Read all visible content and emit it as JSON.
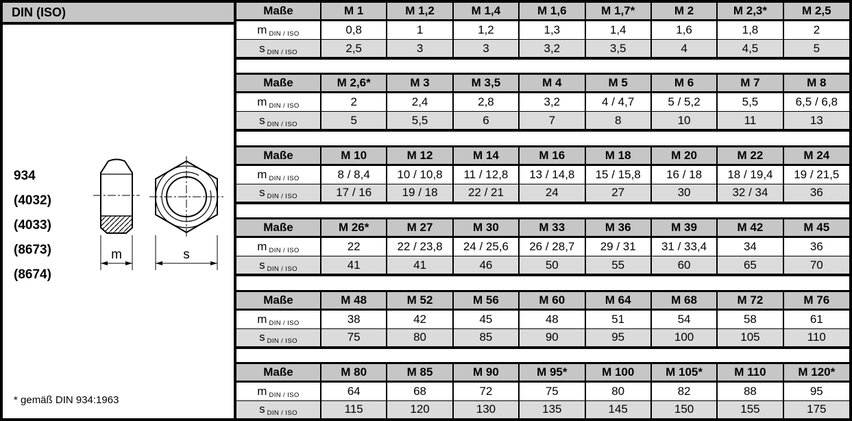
{
  "header": {
    "title": "DIN (ISO)"
  },
  "left": {
    "codes": [
      "934",
      "(4032)",
      "(4033)",
      "(8673)",
      "(8674)"
    ],
    "footnote": "* gemäß DIN 934:1963",
    "drawing": {
      "description": "hex nut, side section view and front view",
      "m_label": "m",
      "s_label": "s"
    }
  },
  "table": {
    "masse_label": "Maße",
    "m_label": "m",
    "s_label": "s",
    "sub_label": "DIN / ISO",
    "blocks": [
      {
        "sizes": [
          "M 1",
          "M 1,2",
          "M 1,4",
          "M 1,6",
          "M 1,7*",
          "M 2",
          "M 2,3*",
          "M 2,5"
        ],
        "m": [
          "0,8",
          "1",
          "1,2",
          "1,3",
          "1,4",
          "1,6",
          "1,8",
          "2"
        ],
        "s": [
          "2,5",
          "3",
          "3",
          "3,2",
          "3,5",
          "4",
          "4,5",
          "5"
        ]
      },
      {
        "sizes": [
          "M 2,6*",
          "M 3",
          "M 3,5",
          "M 4",
          "M 5",
          "M 6",
          "M 7",
          "M 8"
        ],
        "m": [
          "2",
          "2,4",
          "2,8",
          "3,2",
          "4 / 4,7",
          "5 / 5,2",
          "5,5",
          "6,5 / 6,8"
        ],
        "s": [
          "5",
          "5,5",
          "6",
          "7",
          "8",
          "10",
          "11",
          "13"
        ]
      },
      {
        "sizes": [
          "M 10",
          "M 12",
          "M 14",
          "M 16",
          "M 18",
          "M 20",
          "M 22",
          "M 24"
        ],
        "m": [
          "8 / 8,4",
          "10 / 10,8",
          "11 / 12,8",
          "13 / 14,8",
          "15 / 15,8",
          "16 / 18",
          "18 / 19,4",
          "19 / 21,5"
        ],
        "s": [
          "17 / 16",
          "19 / 18",
          "22 / 21",
          "24",
          "27",
          "30",
          "32 / 34",
          "36"
        ]
      },
      {
        "sizes": [
          "M 26*",
          "M 27",
          "M 30",
          "M 33",
          "M 36",
          "M 39",
          "M 42",
          "M 45"
        ],
        "m": [
          "22",
          "22 / 23,8",
          "24 / 25,6",
          "26 / 28,7",
          "29 / 31",
          "31 / 33,4",
          "34",
          "36"
        ],
        "s": [
          "41",
          "41",
          "46",
          "50",
          "55",
          "60",
          "65",
          "70"
        ]
      },
      {
        "sizes": [
          "M 48",
          "M 52",
          "M 56",
          "M 60",
          "M 64",
          "M 68",
          "M 72",
          "M 76"
        ],
        "m": [
          "38",
          "42",
          "45",
          "48",
          "51",
          "54",
          "58",
          "61"
        ],
        "s": [
          "75",
          "80",
          "85",
          "90",
          "95",
          "100",
          "105",
          "110"
        ]
      },
      {
        "sizes": [
          "M 80",
          "M 85",
          "M 90",
          "M 95*",
          "M 100",
          "M 105*",
          "M 110",
          "M 120*"
        ],
        "m": [
          "64",
          "68",
          "72",
          "75",
          "80",
          "82",
          "88",
          "95"
        ],
        "s": [
          "115",
          "120",
          "130",
          "135",
          "145",
          "150",
          "155",
          "175"
        ]
      }
    ]
  },
  "colors": {
    "header_gray": "#c6c6c6",
    "shaded_row_gray": "#dbdbdb",
    "border": "#000000",
    "background": "#ffffff"
  }
}
